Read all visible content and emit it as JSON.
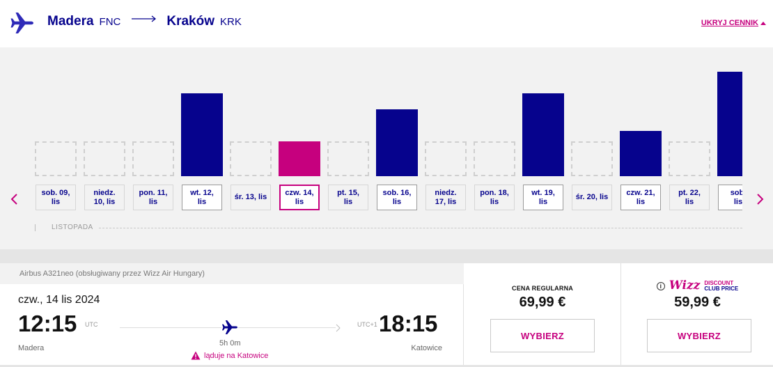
{
  "header": {
    "origin_city": "Madera",
    "origin_code": "FNC",
    "dest_city": "Kraków",
    "dest_code": "KRK",
    "hide_prices_label": "UKRYJ CENNIK"
  },
  "calendar": {
    "month_label": "LISTOPADA",
    "days": [
      {
        "label_1": "sob. 09,",
        "label_2": "lis",
        "state": "disabled",
        "level": 0
      },
      {
        "label_1": "niedz.",
        "label_2": "10, lis",
        "state": "disabled",
        "level": 0
      },
      {
        "label_1": "pon. 11,",
        "label_2": "lis",
        "state": "disabled",
        "level": 0
      },
      {
        "label_1": "wt. 12,",
        "label_2": "lis",
        "state": "available",
        "level": 119
      },
      {
        "label_1": "śr. 13, lis",
        "label_2": "",
        "state": "disabled",
        "level": 0
      },
      {
        "label_1": "czw. 14,",
        "label_2": "lis",
        "state": "selected",
        "level": 50
      },
      {
        "label_1": "pt. 15,",
        "label_2": "lis",
        "state": "disabled",
        "level": 0
      },
      {
        "label_1": "sob. 16,",
        "label_2": "lis",
        "state": "available",
        "level": 96
      },
      {
        "label_1": "niedz.",
        "label_2": "17, lis",
        "state": "disabled",
        "level": 0
      },
      {
        "label_1": "pon. 18,",
        "label_2": "lis",
        "state": "disabled",
        "level": 0
      },
      {
        "label_1": "wt. 19,",
        "label_2": "lis",
        "state": "available",
        "level": 119
      },
      {
        "label_1": "śr. 20, lis",
        "label_2": "",
        "state": "disabled",
        "level": 0
      },
      {
        "label_1": "czw. 21,",
        "label_2": "lis",
        "state": "available",
        "level": 65
      },
      {
        "label_1": "pt. 22,",
        "label_2": "lis",
        "state": "disabled",
        "level": 0
      },
      {
        "label_1": "sob.",
        "label_2": "lis",
        "state": "available",
        "level": 150
      }
    ]
  },
  "flight": {
    "aircraft": "Airbus A321neo (obsługiwany przez Wizz Air Hungary)",
    "date": "czw., 14 lis 2024",
    "departure_time": "12:15",
    "departure_tz": "UTC",
    "arrival_time": "18:15",
    "arrival_tz": "UTC+1",
    "duration": "5h 0m",
    "departure_city": "Madera",
    "arrival_city": "Katowice",
    "warning": "ląduje na Katowice"
  },
  "prices": {
    "regular_label": "CENA REGULARNA",
    "regular_value": "69,99 €",
    "regular_button": "WYBIERZ",
    "club_wizz": "Wizz",
    "club_line1": "DISCOUNT",
    "club_line2": "CLUB PRICE",
    "club_value": "59,99 €",
    "club_button": "WYBIERZ"
  },
  "colors": {
    "brand_blue": "#06038d",
    "brand_pink": "#c6007e"
  }
}
